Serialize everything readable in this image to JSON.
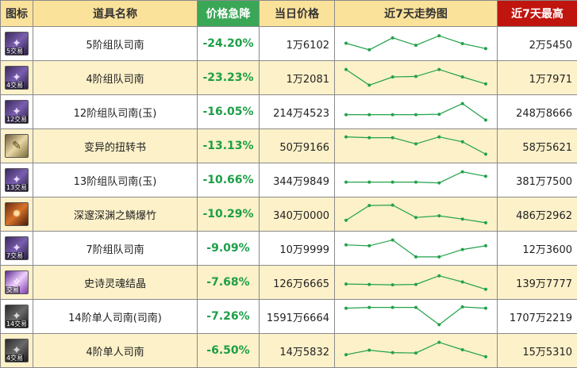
{
  "headers": {
    "icon": "图标",
    "name": "道具名称",
    "drop": "价格急降",
    "today": "当日价格",
    "trend": "近7天走势图",
    "max": "近7天最高"
  },
  "colors": {
    "header_bg": "#fbe29a",
    "drop_header_bg": "#3aa757",
    "max_header_bg": "#c0140e",
    "row_alt_bg": "#fdf1c9",
    "drop_text": "#1d9e48",
    "trend_line": "#22a24a"
  },
  "rows": [
    {
      "icon": "purple-scroll-icon",
      "badge": "5交易",
      "name": "5阶组队司南",
      "drop": "-24.20%",
      "today": "1万6102",
      "max": "2万5450",
      "trend": [
        0.48,
        0.8,
        0.22,
        0.58,
        0.12,
        0.5,
        0.74
      ]
    },
    {
      "icon": "purple-scroll-icon",
      "badge": "4交易",
      "name": "4阶组队司南",
      "drop": "-23.23%",
      "today": "1万2081",
      "max": "1万7971",
      "trend": [
        0.1,
        0.86,
        0.46,
        0.44,
        0.1,
        0.46,
        0.8
      ]
    },
    {
      "icon": "purple-scroll-icon",
      "badge": "12交易",
      "name": "12阶组队司南(玉)",
      "drop": "-16.05%",
      "today": "214万4523",
      "max": "248万8666",
      "trend": [
        0.64,
        0.64,
        0.64,
        0.64,
        0.62,
        0.1,
        0.9
      ]
    },
    {
      "icon": "book-icon",
      "badge": "",
      "name": "变异的扭转书",
      "drop": "-13.13%",
      "today": "50万9166",
      "max": "58万5621",
      "trend": [
        0.06,
        0.1,
        0.1,
        0.4,
        0.06,
        0.3,
        0.9
      ]
    },
    {
      "icon": "purple-scroll-icon",
      "badge": "13交易",
      "name": "13阶组队司南(玉)",
      "drop": "-10.66%",
      "today": "344万9849",
      "max": "381万7500",
      "trend": [
        0.6,
        0.6,
        0.6,
        0.6,
        0.64,
        0.1,
        0.32
      ]
    },
    {
      "icon": "bamboo-icon",
      "badge": "",
      "name": "深邃深渊之鳞爆竹",
      "drop": "-10.29%",
      "today": "340万0000",
      "max": "486万2962",
      "trend": [
        0.8,
        0.08,
        0.06,
        0.66,
        0.58,
        0.74,
        0.92
      ]
    },
    {
      "icon": "purple-scroll-icon",
      "badge": "7交易",
      "name": "7阶组队司南",
      "drop": "-9.09%",
      "today": "10万9999",
      "max": "12万3600",
      "trend": [
        0.34,
        0.38,
        0.1,
        0.92,
        0.92,
        0.56,
        0.38
      ]
    },
    {
      "icon": "crystal-icon",
      "badge": "交易",
      "name": "史诗灵魂结晶",
      "drop": "-7.68%",
      "today": "126万6665",
      "max": "139万7777",
      "trend": [
        0.58,
        0.6,
        0.62,
        0.6,
        0.18,
        0.48,
        0.84
      ]
    },
    {
      "icon": "dark-scroll-icon",
      "badge": "14交易",
      "name": "14阶单人司南(司南)",
      "drop": "-7.26%",
      "today": "1591万6664",
      "max": "1707万2219",
      "trend": [
        0.1,
        0.06,
        0.06,
        0.06,
        0.9,
        0.04,
        0.1
      ]
    },
    {
      "icon": "dark-scroll-icon",
      "badge": "4交易",
      "name": "4阶单人司南",
      "drop": "-6.50%",
      "today": "14万5832",
      "max": "15万5310",
      "trend": [
        0.7,
        0.48,
        0.6,
        0.62,
        0.1,
        0.46,
        0.8
      ]
    }
  ]
}
